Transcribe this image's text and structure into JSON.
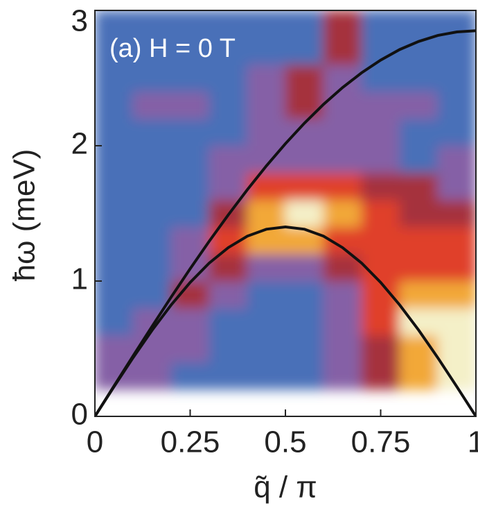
{
  "chart_data": {
    "type": "heatmap",
    "annotation": "(a) H = 0 T",
    "xlabel": "q̃ / π",
    "ylabel": "ħω (meV)",
    "xlim": [
      0,
      1
    ],
    "ylim": [
      0,
      3
    ],
    "xticks": [
      0,
      0.25,
      0.5,
      0.75,
      1
    ],
    "yticks": [
      0,
      1,
      2,
      3
    ],
    "colors": [
      "#4a6fb8",
      "#8560a6",
      "#a5303e",
      "#e0402c",
      "#f2a838",
      "#f4f0c8"
    ],
    "x_edges": [
      0,
      0.1,
      0.2,
      0.3,
      0.4,
      0.5,
      0.6,
      0.7,
      0.8,
      0.9,
      1
    ],
    "y_edges": [
      0.2,
      0.4,
      0.6,
      0.8,
      1.0,
      1.2,
      1.4,
      1.6,
      1.8,
      2.0,
      2.2,
      2.4,
      2.6,
      2.8,
      3.0
    ],
    "z": [
      [
        1,
        1,
        0,
        0,
        0,
        0,
        1,
        2,
        4,
        5
      ],
      [
        1,
        1,
        1,
        0,
        0,
        0,
        1,
        2,
        4,
        5
      ],
      [
        0,
        1,
        1,
        0,
        0,
        0,
        1,
        3,
        5,
        5
      ],
      [
        0,
        0,
        2,
        1,
        0,
        0,
        1,
        3,
        4,
        4
      ],
      [
        0,
        0,
        1,
        2,
        1,
        1,
        2,
        3,
        3,
        3
      ],
      [
        0,
        0,
        1,
        3,
        4,
        4,
        3,
        3,
        3,
        3
      ],
      [
        0,
        0,
        0,
        2,
        4,
        5,
        4,
        3,
        2,
        2
      ],
      [
        0,
        0,
        0,
        1,
        3,
        3,
        3,
        2,
        2,
        1
      ],
      [
        0,
        0,
        0,
        1,
        1,
        1,
        1,
        1,
        0,
        1
      ],
      [
        0,
        0,
        0,
        0,
        1,
        1,
        1,
        1,
        0,
        0
      ],
      [
        0,
        1,
        1,
        0,
        1,
        2,
        1,
        1,
        1,
        0
      ],
      [
        0,
        0,
        0,
        0,
        1,
        2,
        1,
        0,
        0,
        0
      ],
      [
        0,
        0,
        0,
        0,
        0,
        0,
        2,
        0,
        0,
        0
      ],
      [
        0,
        0,
        0,
        0,
        0,
        0,
        2,
        0,
        0,
        0
      ]
    ],
    "x": [
      0,
      0.05,
      0.1,
      0.15,
      0.2,
      0.25,
      0.3,
      0.35,
      0.4,
      0.45,
      0.5,
      0.55,
      0.6,
      0.65,
      0.7,
      0.75,
      0.8,
      0.85,
      0.9,
      0.95,
      1
    ],
    "series": [
      {
        "color": "#111111",
        "values": [
          0,
          0.224,
          0.446,
          0.665,
          0.881,
          1.091,
          1.294,
          1.489,
          1.675,
          1.851,
          2.015,
          2.167,
          2.306,
          2.43,
          2.539,
          2.633,
          2.711,
          2.771,
          2.815,
          2.841,
          2.85
        ]
      },
      {
        "color": "#111111",
        "values": [
          0,
          0.219,
          0.433,
          0.636,
          0.823,
          0.99,
          1.133,
          1.247,
          1.332,
          1.383,
          1.4,
          1.383,
          1.332,
          1.247,
          1.133,
          0.99,
          0.823,
          0.636,
          0.433,
          0.219,
          0
        ]
      }
    ]
  }
}
